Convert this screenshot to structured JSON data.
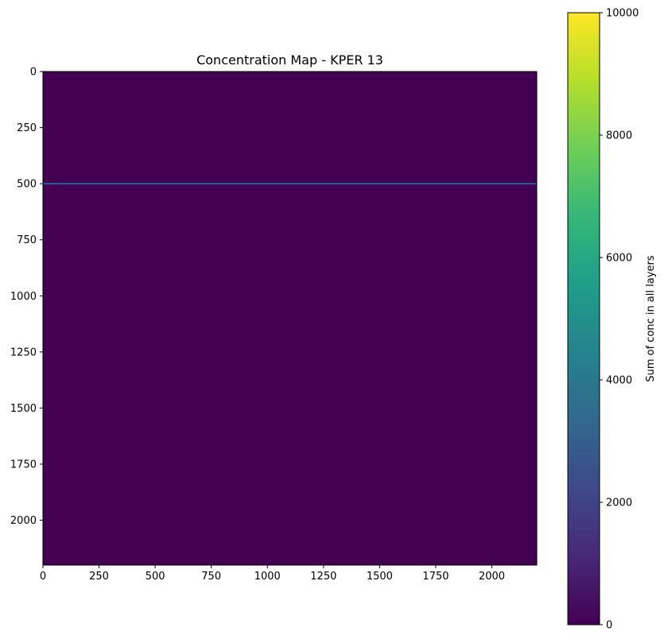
{
  "chart_data": {
    "type": "heatmap",
    "title": "Concentration Map - KPER 13",
    "xlabel": "",
    "ylabel": "",
    "xlim": [
      0,
      2200
    ],
    "ylim": [
      2200,
      0
    ],
    "x_ticks": [
      0,
      250,
      500,
      750,
      1000,
      1250,
      1500,
      1750,
      2000
    ],
    "y_ticks": [
      0,
      250,
      500,
      750,
      1000,
      1250,
      1500,
      1750,
      2000
    ],
    "y_axis_inverted": true,
    "grid": false,
    "field_value": 0,
    "field_color": "#440154",
    "line": {
      "y": 500,
      "x_range": [
        0,
        2200
      ],
      "color": "#1f77b4"
    },
    "colorbar": {
      "label": "Sum of conc in all layers",
      "range": [
        0,
        10000
      ],
      "ticks": [
        0,
        2000,
        4000,
        6000,
        8000,
        10000
      ],
      "colormap": "viridis",
      "colors": [
        "#440154",
        "#482878",
        "#3e4989",
        "#31688e",
        "#26828e",
        "#1f9e89",
        "#35b779",
        "#6ece58",
        "#b5de2b",
        "#fde725"
      ]
    }
  }
}
